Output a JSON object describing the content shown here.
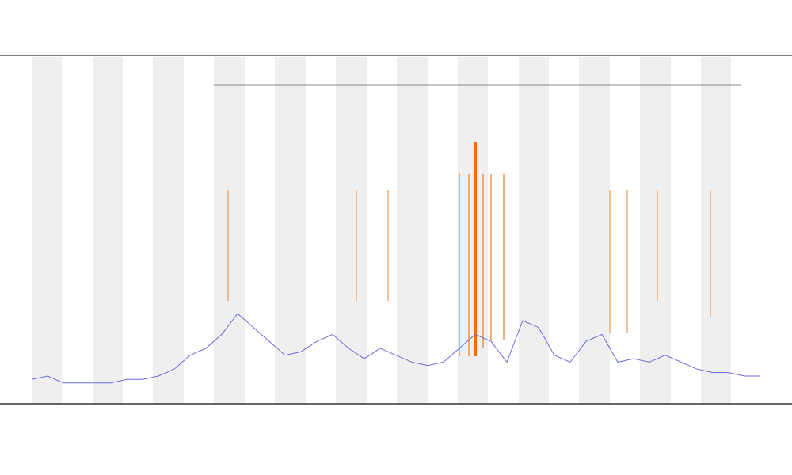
{
  "chart_data": {
    "type": "line",
    "values": [
      7,
      8,
      6,
      6,
      6,
      6,
      7,
      7,
      8,
      10,
      14,
      16,
      20,
      26,
      22,
      18,
      14,
      15,
      18,
      20,
      16,
      13,
      16,
      14,
      12,
      11,
      12,
      16,
      20,
      18,
      12,
      24,
      22,
      14,
      12,
      18,
      20,
      12,
      13,
      12,
      14,
      12,
      10,
      9,
      9,
      8,
      8
    ],
    "color": "#6b6bdc",
    "ylim": [
      0,
      100
    ]
  }
}
